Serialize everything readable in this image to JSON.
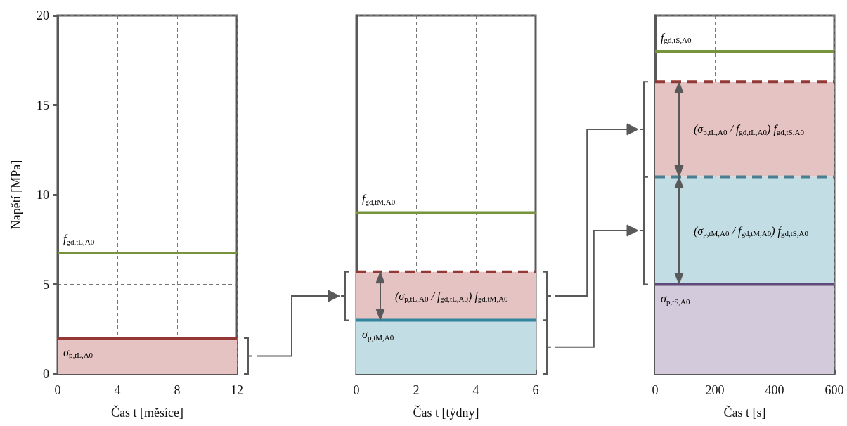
{
  "chart_data": [
    {
      "type": "line",
      "xlabel": "Čas t [měsíce]",
      "ylabel": "Napětí [MPa]",
      "xlim": [
        0,
        12
      ],
      "xticks": [
        0,
        4,
        8,
        12
      ],
      "ylim": [
        0,
        20
      ],
      "yticks": [
        0,
        5,
        10,
        15,
        20
      ],
      "grid": true,
      "marker": "none",
      "series": [
        {
          "name": "f$_{gd,tL,A0}$",
          "x": [
            0,
            12
          ],
          "values": [
            6.75,
            6.75
          ],
          "color": "#77933c",
          "line_style": "solid"
        },
        {
          "name": "σ$_{p,tL,A0}$",
          "x": [
            0,
            12
          ],
          "values": [
            2,
            2
          ],
          "color": "#953735",
          "line_style": "solid"
        }
      ],
      "bands": [
        {
          "axis": "y",
          "from": 0,
          "to": 2,
          "color": "#e6c3c3"
        }
      ]
    },
    {
      "type": "line",
      "xlabel": "Čas t [týdny]",
      "xlim": [
        0,
        6
      ],
      "xticks": [
        0,
        2,
        4,
        6
      ],
      "ylim": [
        0,
        20
      ],
      "yticks": [
        0,
        5,
        10,
        15,
        20
      ],
      "grid": true,
      "marker": "none",
      "tick_labels": "x",
      "series": [
        {
          "name": "f$_{gd,tM,A0}$",
          "x": [
            0,
            6
          ],
          "values": [
            9,
            9
          ],
          "color": "#77933c",
          "line_style": "solid"
        },
        {
          "x": [
            0,
            6
          ],
          "values": [
            5.7,
            5.7
          ],
          "color": "#953735",
          "line_style": "dashed"
        },
        {
          "name": "σ$_{p,tM,A0}$",
          "x": [
            0,
            6
          ],
          "values": [
            3,
            3
          ],
          "color": "#31859c",
          "line_style": "solid"
        }
      ],
      "bands": [
        {
          "axis": "y",
          "from": 0,
          "to": 3,
          "color": "#c3dde4"
        },
        {
          "axis": "y",
          "from": 3,
          "to": 5.7,
          "color": "#e6c3c3",
          "label": "(σ$_{p,tL,A0}$ / f$_{gd,tL,A0}$) f$_{gd,tM,A0}$"
        }
      ]
    },
    {
      "type": "line",
      "xlabel": "Čas t [s]",
      "xlim": [
        0,
        600
      ],
      "xticks": [
        0,
        200,
        400,
        600
      ],
      "ylim": [
        0,
        20
      ],
      "yticks": [
        0,
        5,
        10,
        15,
        20
      ],
      "grid": true,
      "marker": "none",
      "tick_labels": "x",
      "series": [
        {
          "name": "f$_{gd,tS,A0}$",
          "x": [
            0,
            600
          ],
          "values": [
            18,
            18
          ],
          "color": "#77933c",
          "line_style": "solid"
        },
        {
          "x": [
            0,
            600
          ],
          "values": [
            16.3,
            16.3
          ],
          "color": "#953735",
          "line_style": "dashed"
        },
        {
          "x": [
            0,
            600
          ],
          "values": [
            11,
            11
          ],
          "color": "#4a7f91",
          "line_style": "dashed"
        },
        {
          "name": "σ$_{p,tS,A0}$",
          "x": [
            0,
            600
          ],
          "values": [
            5,
            5
          ],
          "color": "#604a7b",
          "line_style": "solid"
        }
      ],
      "bands": [
        {
          "axis": "y",
          "from": 0,
          "to": 5,
          "color": "#d3cbdb"
        },
        {
          "axis": "y",
          "from": 5,
          "to": 11,
          "color": "#c3dde4",
          "label": "(σ$_{p,tM,A0}$ / f$_{gd,tM,A0}$) f$_{gd,tS,A0}$"
        },
        {
          "axis": "y",
          "from": 11,
          "to": 16.3,
          "color": "#e6c3c3",
          "label": "(σ$_{p,tL,A0}$ / f$_{gd,tL,A0}$) f$_{gd,tS,A0}$"
        }
      ]
    }
  ]
}
